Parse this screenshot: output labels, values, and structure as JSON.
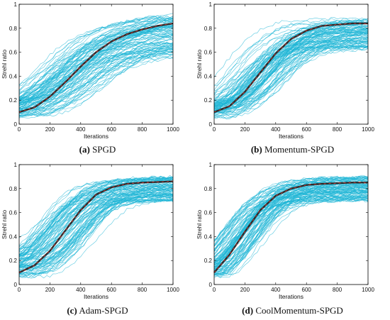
{
  "colors": {
    "trials": "#1fb6d6",
    "mean": "#2b2b2b",
    "mean_highlight": "#ff3b3b",
    "axis": "#000000",
    "background": "#ffffff"
  },
  "panels": [
    {
      "letter": "(a)",
      "caption": "SPGD"
    },
    {
      "letter": "(b)",
      "caption": "Momentum-SPGD"
    },
    {
      "letter": "(c)",
      "caption": "Adam-SPGD"
    },
    {
      "letter": "(d)",
      "caption": "CoolMomentum-SPGD"
    }
  ],
  "chart_data": [
    {
      "type": "line",
      "title": "",
      "xlabel": "Iterations",
      "ylabel": "Strehl ratio",
      "xlim": [
        0,
        1000
      ],
      "ylim": [
        0,
        1
      ],
      "xticks": [
        0,
        200,
        400,
        600,
        800,
        1000
      ],
      "yticks": [
        0,
        0.2,
        0.4,
        0.6,
        0.8,
        1
      ],
      "ytick_labels": [
        "0",
        "0.2",
        "0.4",
        "0.6",
        "0.8",
        "1"
      ],
      "grid": false,
      "series": [
        {
          "role": "mean",
          "x": [
            0,
            100,
            200,
            300,
            400,
            500,
            600,
            700,
            800,
            900,
            1000
          ],
          "y": [
            0.1,
            0.14,
            0.23,
            0.35,
            0.48,
            0.6,
            0.69,
            0.75,
            0.79,
            0.82,
            0.84
          ]
        }
      ],
      "trials": {
        "count": 100,
        "y_start_range": [
          0.05,
          0.22
        ],
        "y_end_range": [
          0.55,
          0.92
        ]
      }
    },
    {
      "type": "line",
      "title": "",
      "xlabel": "Iterations",
      "ylabel": "Strehl ratio",
      "xlim": [
        0,
        1000
      ],
      "ylim": [
        0,
        1
      ],
      "xticks": [
        0,
        200,
        400,
        600,
        800,
        1000
      ],
      "yticks": [
        0,
        0.2,
        0.4,
        0.6,
        0.8,
        1
      ],
      "ytick_labels": [
        "0",
        "0.2",
        "0.4",
        "0.6",
        "0.8",
        "1"
      ],
      "grid": false,
      "series": [
        {
          "role": "mean",
          "x": [
            0,
            100,
            200,
            300,
            400,
            500,
            600,
            700,
            800,
            900,
            1000
          ],
          "y": [
            0.1,
            0.15,
            0.27,
            0.43,
            0.59,
            0.71,
            0.78,
            0.82,
            0.83,
            0.84,
            0.84
          ]
        }
      ],
      "trials": {
        "count": 100,
        "y_start_range": [
          0.05,
          0.2
        ],
        "y_end_range": [
          0.62,
          0.88
        ]
      }
    },
    {
      "type": "line",
      "title": "",
      "xlabel": "Iterations",
      "ylabel": "Strehl ratio",
      "xlim": [
        0,
        1000
      ],
      "ylim": [
        0,
        1
      ],
      "xticks": [
        0,
        200,
        400,
        600,
        800,
        1000
      ],
      "yticks": [
        0,
        0.2,
        0.4,
        0.6,
        0.8,
        1
      ],
      "ytick_labels": [
        "0",
        "0.2",
        "0.4",
        "0.6",
        "0.8",
        "1"
      ],
      "grid": false,
      "series": [
        {
          "role": "mean",
          "x": [
            0,
            100,
            200,
            300,
            400,
            500,
            600,
            700,
            800,
            900,
            1000
          ],
          "y": [
            0.1,
            0.16,
            0.28,
            0.45,
            0.62,
            0.75,
            0.81,
            0.84,
            0.85,
            0.855,
            0.86
          ]
        }
      ],
      "trials": {
        "count": 100,
        "y_start_range": [
          0.06,
          0.26
        ],
        "y_end_range": [
          0.7,
          0.9
        ]
      }
    },
    {
      "type": "line",
      "title": "",
      "xlabel": "Iterations",
      "ylabel": "Strehl ratio",
      "xlim": [
        0,
        1000
      ],
      "ylim": [
        0,
        1
      ],
      "xticks": [
        0,
        200,
        400,
        600,
        800,
        1000
      ],
      "yticks": [
        0,
        0.2,
        0.4,
        0.6,
        0.8,
        1
      ],
      "ytick_labels": [
        "0",
        "0.2",
        "0.4",
        "0.6",
        "0.8",
        "1"
      ],
      "grid": false,
      "series": [
        {
          "role": "mean",
          "x": [
            0,
            100,
            200,
            300,
            400,
            500,
            600,
            700,
            800,
            900,
            1000
          ],
          "y": [
            0.1,
            0.25,
            0.44,
            0.62,
            0.74,
            0.8,
            0.83,
            0.84,
            0.845,
            0.85,
            0.85
          ]
        }
      ],
      "trials": {
        "count": 100,
        "y_start_range": [
          0.06,
          0.2
        ],
        "y_end_range": [
          0.7,
          0.9
        ]
      }
    }
  ]
}
